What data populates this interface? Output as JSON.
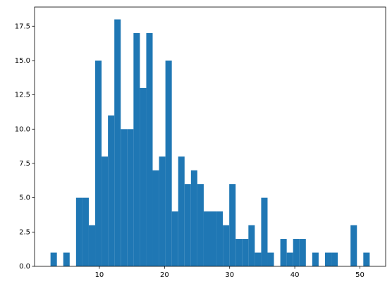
{
  "chart_data": {
    "type": "histogram",
    "color": "#1f77b4",
    "bins": [
      2.5,
      3.48,
      4.46,
      5.44,
      6.42,
      7.4,
      8.38,
      9.36,
      10.34,
      11.32,
      12.3,
      13.28,
      14.26,
      15.24,
      16.22,
      17.2,
      18.18,
      19.16,
      20.14,
      21.12,
      22.1,
      23.08,
      24.06,
      25.04,
      26.02,
      27.0,
      27.98,
      28.96,
      29.94,
      30.92,
      31.9,
      32.88,
      33.86,
      34.84,
      35.82,
      36.8,
      37.78,
      38.76,
      39.74,
      40.72,
      41.7,
      42.68,
      43.66,
      44.64,
      45.62,
      46.6,
      47.58,
      48.56,
      49.54,
      50.52,
      51.5
    ],
    "values": [
      1,
      0,
      1,
      0,
      5,
      5,
      3,
      15,
      8,
      11,
      18,
      10,
      10,
      17,
      13,
      17,
      7,
      8,
      15,
      4,
      8,
      6,
      7,
      6,
      4,
      4,
      4,
      3,
      6,
      2,
      2,
      3,
      1,
      5,
      1,
      0,
      2,
      1,
      2,
      2,
      0,
      1,
      0,
      1,
      1,
      0,
      0,
      3,
      0,
      1
    ],
    "xlim": [
      0.05,
      53.95
    ],
    "xticks": [
      10,
      20,
      30,
      40,
      50
    ],
    "ylim": [
      0,
      18.9
    ],
    "yticks": [
      {
        "value": 0,
        "label": "0.0"
      },
      2.5,
      {
        "value": 5,
        "label": "5.0"
      },
      7.5,
      {
        "value": 10,
        "label": "10.0"
      },
      12.5,
      {
        "value": 15,
        "label": "15.0"
      },
      17.5
    ]
  }
}
